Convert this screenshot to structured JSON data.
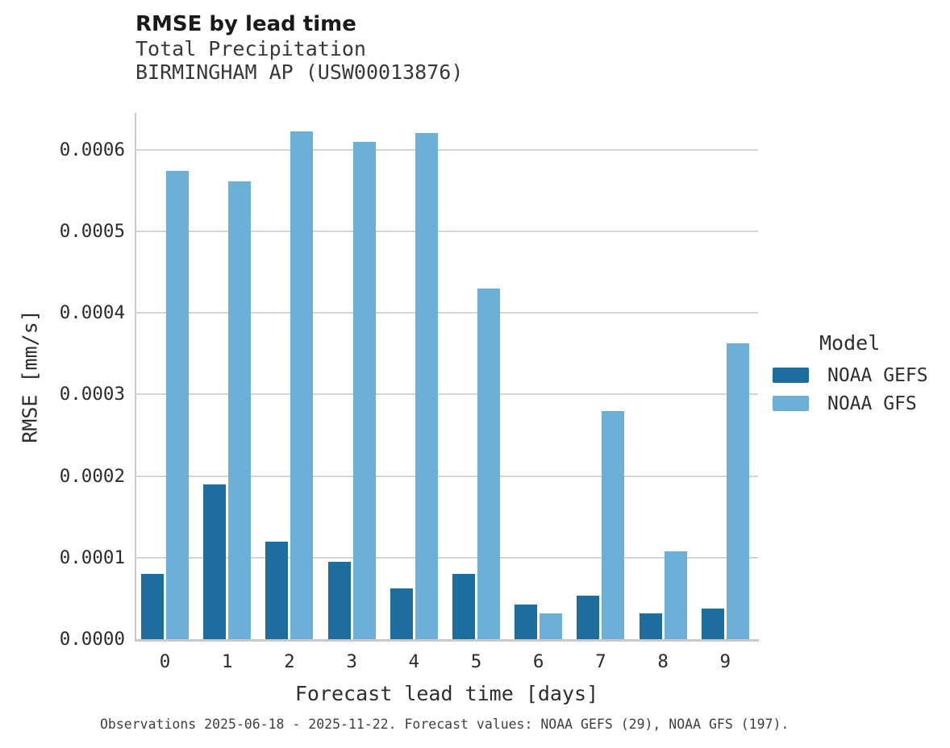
{
  "header": {
    "title": "RMSE by lead time",
    "subtitle_line1": "Total Precipitation",
    "subtitle_line2": "BIRMINGHAM AP (USW00013876)"
  },
  "axes": {
    "y_label": "RMSE [mm/s]",
    "x_label": "Forecast lead time [days]",
    "y_tick_labels": [
      "0.0000",
      "0.0001",
      "0.0002",
      "0.0003",
      "0.0004",
      "0.0005",
      "0.0006"
    ],
    "y_tick_values": [
      0,
      0.0001,
      0.0002,
      0.0003,
      0.0004,
      0.0005,
      0.0006
    ],
    "x_tick_labels": [
      "0",
      "1",
      "2",
      "3",
      "4",
      "5",
      "6",
      "7",
      "8",
      "9"
    ]
  },
  "legend": {
    "title": "Model",
    "entries": [
      {
        "label": "NOAA GEFS",
        "color": "#1d6d9e"
      },
      {
        "label": "NOAA GFS",
        "color": "#6cb0d8"
      }
    ]
  },
  "caption": "Observations 2025-06-18 - 2025-11-22. Forecast values: NOAA GEFS (29), NOAA GFS (197).",
  "colors": {
    "series_dark": "#1d6d9e",
    "series_light": "#6cb0d8",
    "gridline": "#d4d4d4",
    "spine": "#c9c9c9",
    "background": "#ffffff"
  },
  "chart_data": {
    "type": "bar",
    "title": "RMSE by lead time",
    "subtitle": [
      "Total Precipitation",
      "BIRMINGHAM AP (USW00013876)"
    ],
    "categories": [
      0,
      1,
      2,
      3,
      4,
      5,
      6,
      7,
      8,
      9
    ],
    "series": [
      {
        "name": "NOAA GEFS",
        "color": "#1d6d9e",
        "values": [
          8e-05,
          0.00019,
          0.00012,
          9.5e-05,
          6.2e-05,
          8e-05,
          4.2e-05,
          5.3e-05,
          3.2e-05,
          3.8e-05
        ]
      },
      {
        "name": "NOAA GFS",
        "color": "#6cb0d8",
        "values": [
          0.000574,
          0.000561,
          0.000622,
          0.000609,
          0.00062,
          0.00043,
          3.2e-05,
          0.00028,
          0.000108,
          0.000363
        ]
      }
    ],
    "xlabel": "Forecast lead time [days]",
    "ylabel": "RMSE [mm/s]",
    "ylim": [
      0,
      0.000645
    ],
    "grid": "horizontal",
    "legend_title": "Model",
    "legend_position": "right",
    "caption": "Observations 2025-06-18 - 2025-11-22. Forecast values: NOAA GEFS (29), NOAA GFS (197)."
  }
}
